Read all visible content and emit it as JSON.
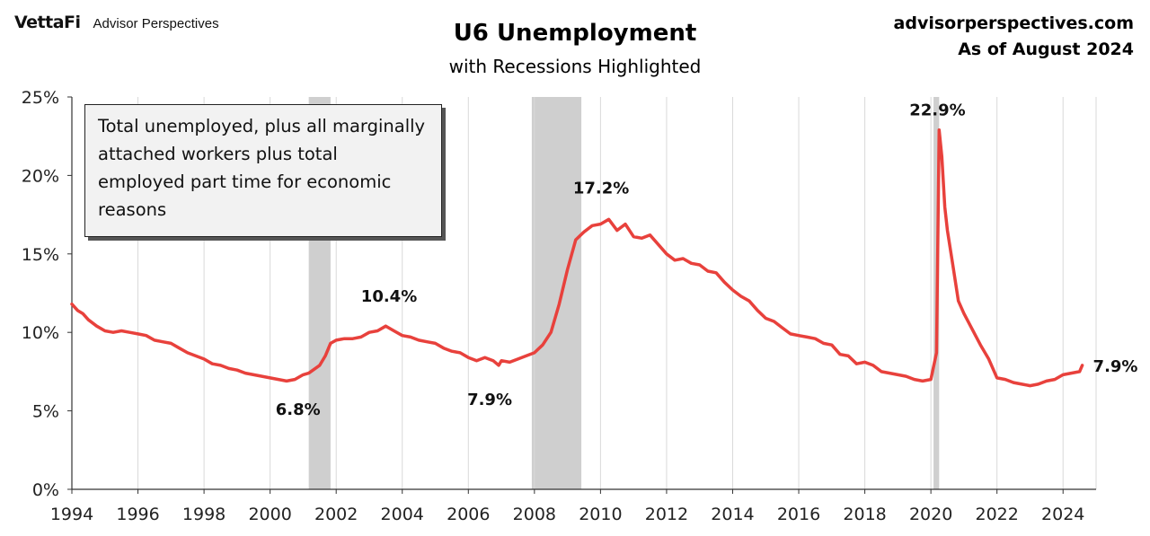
{
  "header": {
    "brand_logo": "VettaFi",
    "brand_name": "Advisor Perspectives",
    "title": "U6 Unemployment",
    "subtitle": "with Recessions Highlighted",
    "source_site": "advisorperspectives.com",
    "as_of": "As of August 2024"
  },
  "note": "Total unemployed, plus all marginally attached workers plus total employed part time for economic reasons",
  "chart_data": {
    "type": "line",
    "title": "U6 Unemployment",
    "subtitle": "with Recessions Highlighted",
    "xlim": [
      1994,
      2025
    ],
    "ylim": [
      0,
      25
    ],
    "x_ticks": [
      1994,
      1996,
      1998,
      2000,
      2002,
      2004,
      2006,
      2008,
      2010,
      2012,
      2014,
      2016,
      2018,
      2020,
      2022,
      2024
    ],
    "y_ticks": [
      0,
      5,
      10,
      15,
      20,
      25
    ],
    "y_tick_labels": [
      "0%",
      "5%",
      "10%",
      "15%",
      "20%",
      "25%"
    ],
    "grid": "vertical",
    "line_color": "#e8413c",
    "recession_color": "#cfcfcf",
    "recessions": [
      {
        "start": 2001.17,
        "end": 2001.83
      },
      {
        "start": 2007.92,
        "end": 2009.42
      },
      {
        "start": 2020.08,
        "end": 2020.25
      }
    ],
    "series": [
      {
        "x": [
          1994.0,
          1994.17,
          1994.33,
          1994.5,
          1994.75,
          1995.0,
          1995.25,
          1995.5,
          1995.75,
          1996.0,
          1996.25,
          1996.5,
          1996.75,
          1997.0,
          1997.25,
          1997.5,
          1997.75,
          1998.0,
          1998.25,
          1998.5,
          1998.75,
          1999.0,
          1999.25,
          1999.5,
          1999.75,
          2000.0,
          2000.25,
          2000.5,
          2000.75,
          2001.0,
          2001.17,
          2001.5,
          2001.67,
          2001.83,
          2002.0,
          2002.25,
          2002.5,
          2002.75,
          2003.0,
          2003.25,
          2003.5,
          2003.75,
          2004.0,
          2004.25,
          2004.5,
          2004.75,
          2005.0,
          2005.25,
          2005.5,
          2005.75,
          2006.0,
          2006.25,
          2006.5,
          2006.75,
          2006.92,
          2007.0,
          2007.25,
          2007.5,
          2007.75,
          2008.0,
          2008.25,
          2008.5,
          2008.75,
          2009.0,
          2009.25,
          2009.5,
          2009.75,
          2010.0,
          2010.25,
          2010.5,
          2010.75,
          2011.0,
          2011.25,
          2011.5,
          2011.75,
          2012.0,
          2012.25,
          2012.5,
          2012.75,
          2013.0,
          2013.25,
          2013.5,
          2013.75,
          2014.0,
          2014.25,
          2014.5,
          2014.75,
          2015.0,
          2015.25,
          2015.5,
          2015.75,
          2016.0,
          2016.25,
          2016.5,
          2016.75,
          2017.0,
          2017.25,
          2017.5,
          2017.75,
          2018.0,
          2018.25,
          2018.5,
          2018.75,
          2019.0,
          2019.25,
          2019.5,
          2019.75,
          2020.0,
          2020.17,
          2020.25,
          2020.33,
          2020.42,
          2020.5,
          2020.67,
          2020.83,
          2021.0,
          2021.25,
          2021.5,
          2021.75,
          2022.0,
          2022.25,
          2022.5,
          2022.75,
          2023.0,
          2023.25,
          2023.5,
          2023.75,
          2024.0,
          2024.25,
          2024.5,
          2024.58
        ],
        "y": [
          11.8,
          11.4,
          11.2,
          10.8,
          10.4,
          10.1,
          10.0,
          10.1,
          10.0,
          9.9,
          9.8,
          9.5,
          9.4,
          9.3,
          9.0,
          8.7,
          8.5,
          8.3,
          8.0,
          7.9,
          7.7,
          7.6,
          7.4,
          7.3,
          7.2,
          7.1,
          7.0,
          6.9,
          7.0,
          7.3,
          7.4,
          7.9,
          8.5,
          9.3,
          9.5,
          9.6,
          9.6,
          9.7,
          10.0,
          10.1,
          10.4,
          10.1,
          9.8,
          9.7,
          9.5,
          9.4,
          9.3,
          9.0,
          8.8,
          8.7,
          8.4,
          8.2,
          8.4,
          8.2,
          7.9,
          8.2,
          8.1,
          8.3,
          8.5,
          8.7,
          9.2,
          10.0,
          11.8,
          14.0,
          15.9,
          16.4,
          16.8,
          16.9,
          17.2,
          16.5,
          16.9,
          16.1,
          16.0,
          16.2,
          15.6,
          15.0,
          14.6,
          14.7,
          14.4,
          14.3,
          13.9,
          13.8,
          13.2,
          12.7,
          12.3,
          12.0,
          11.4,
          10.9,
          10.7,
          10.3,
          9.9,
          9.8,
          9.7,
          9.6,
          9.3,
          9.2,
          8.6,
          8.5,
          8.0,
          8.1,
          7.9,
          7.5,
          7.4,
          7.3,
          7.2,
          7.0,
          6.9,
          7.0,
          8.7,
          22.9,
          21.2,
          18.0,
          16.5,
          14.2,
          12.0,
          11.2,
          10.2,
          9.2,
          8.3,
          7.1,
          7.0,
          6.8,
          6.7,
          6.6,
          6.7,
          6.9,
          7.0,
          7.3,
          7.4,
          7.5,
          7.9
        ]
      }
    ],
    "annotations": [
      {
        "text": "6.8%",
        "x": 2000.9,
        "y": 6.8
      },
      {
        "text": "10.4%",
        "x": 2003.6,
        "y": 10.4
      },
      {
        "text": "7.9%",
        "x": 2006.7,
        "y": 7.9
      },
      {
        "text": "17.2%",
        "x": 2010.1,
        "y": 17.2
      },
      {
        "text": "22.9%",
        "x": 2020.2,
        "y": 22.9
      },
      {
        "text": "7.9%",
        "x": 2024.58,
        "y": 7.9
      }
    ]
  }
}
